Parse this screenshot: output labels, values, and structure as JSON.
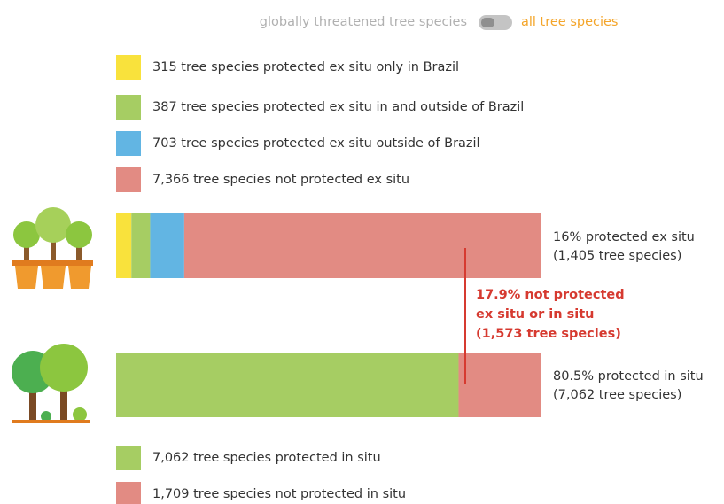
{
  "chart_data": {
    "type": "bar",
    "orientation": "horizontal",
    "stacked": true,
    "toggle": {
      "left": "globally threatened tree species",
      "right": "all tree species",
      "left_color": "#b0b0b0",
      "right_color": "#f4a52a"
    },
    "categories": [
      null,
      null
    ],
    "series": [
      {
        "name": "315 tree species protected ex situ only in Brazil",
        "color": "#f9e23c",
        "values": [
          315,
          null
        ]
      },
      {
        "name": "387 tree species protected ex situ in and outside of Brazil",
        "color": "#a6cd63",
        "values": [
          387,
          null
        ]
      },
      {
        "name": "703 tree species protected ex situ outside of Brazil",
        "color": "#62b5e3",
        "values": [
          703,
          null
        ]
      },
      {
        "name": "7,366 tree species not protected ex situ",
        "color": "#e28b83",
        "values": [
          7366,
          null
        ]
      },
      {
        "name": "7,062 tree species protected in situ",
        "color": "#a6cd63",
        "values": [
          null,
          7062
        ]
      },
      {
        "name": "1,709 tree species not protected in situ",
        "color": "#e28b83",
        "values": [
          null,
          1709
        ]
      }
    ],
    "bar_labels": [
      [
        "16% protected ex situ",
        "(1,405 tree species)"
      ],
      [
        "80.5% protected in situ",
        "(7,062 tree species)"
      ]
    ],
    "annotation": {
      "lines": [
        "17.9% not protected",
        "ex situ or in situ",
        "(1,573 tree species)"
      ],
      "color": "#d63a30"
    }
  }
}
